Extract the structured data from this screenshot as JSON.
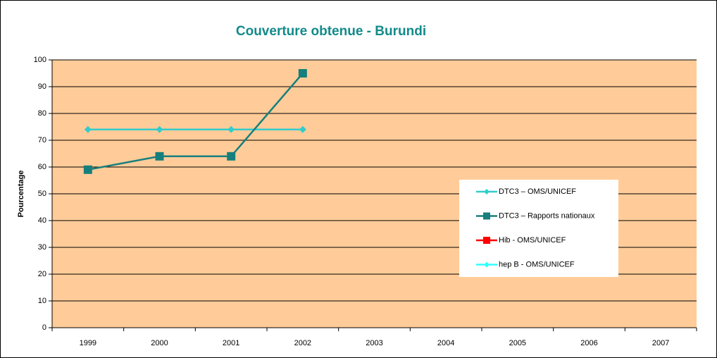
{
  "chart_data": {
    "type": "line",
    "title": "Couverture obtenue  - Burundi",
    "y_label": "Pourcentage",
    "categories": [
      "1999",
      "2000",
      "2001",
      "2002",
      "2003",
      "2004",
      "2005",
      "2006",
      "2007"
    ],
    "series": [
      {
        "name": "DTC3 – OMS/UNICEF",
        "color": "#33cccc",
        "marker": "diamond",
        "values": [
          74,
          74,
          74,
          74,
          null,
          null,
          null,
          null,
          null
        ]
      },
      {
        "name": "DTC3 – Rapports nationaux",
        "color": "#167f7d",
        "marker": "square",
        "values": [
          59,
          64,
          64,
          95,
          null,
          null,
          null,
          null,
          null
        ]
      },
      {
        "name": "Hib - OMS/UNICEF",
        "color": "#ff0000",
        "marker": "square",
        "values": [
          null,
          null,
          null,
          null,
          null,
          null,
          null,
          null,
          null
        ]
      },
      {
        "name": "hep B - OMS/UNICEF",
        "color": "#33ffff",
        "marker": "diamond",
        "values": [
          null,
          null,
          null,
          null,
          null,
          null,
          null,
          null,
          null
        ]
      }
    ],
    "ylim": [
      0,
      100
    ],
    "yticks": [
      0,
      10,
      20,
      30,
      40,
      50,
      60,
      70,
      80,
      90,
      100
    ],
    "grid": true,
    "legend": "right",
    "background": "#ffcc99"
  }
}
